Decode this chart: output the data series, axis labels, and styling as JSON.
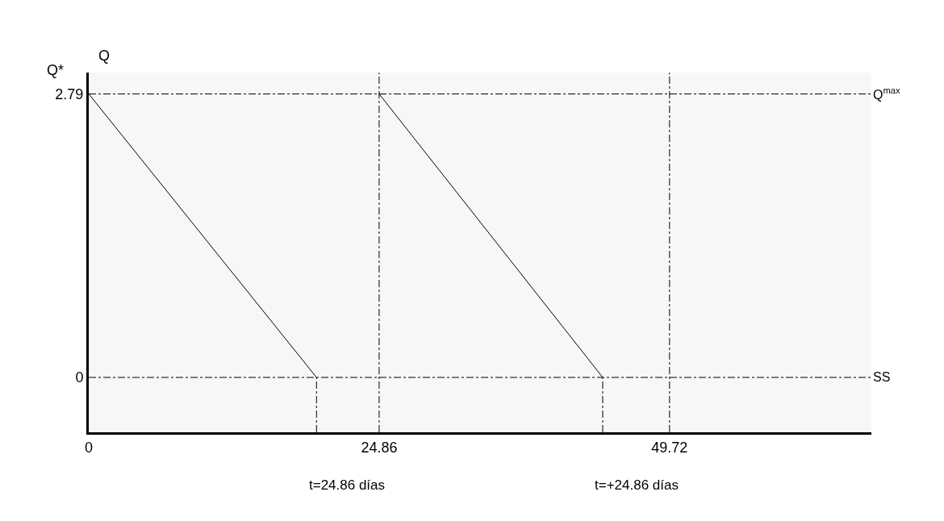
{
  "chart_data": {
    "type": "line",
    "ylabel": "Q",
    "series": [
      {
        "color": "#000000",
        "x": [
          0,
          19.5
        ],
        "values": [
          2.79,
          0
        ]
      },
      {
        "color": "#000000",
        "x": [
          24.86,
          44.0
        ],
        "values": [
          2.79,
          0
        ]
      },
      {
        "color": "#000000",
        "type": "line",
        "line_style": "dashed",
        "x": [
          19.5,
          19.5
        ],
        "values": [
          -0.54,
          0
        ]
      },
      {
        "color": "#000000",
        "type": "line",
        "line_style": "dashed",
        "x": [
          44.0,
          44.0
        ],
        "values": [
          -0.54,
          0
        ]
      }
    ],
    "xlim": [
      0,
      67
    ],
    "ylim": [
      -0.54,
      3.0
    ],
    "xticks": [
      0,
      24.86,
      49.72
    ],
    "yticks": [
      0,
      2.79
    ],
    "ref_lines": [
      {
        "axis": "y",
        "value": 2.79,
        "label": "Q$^{max}$",
        "line_style": "dashed",
        "color": "#000000"
      },
      {
        "axis": "y",
        "value": 0,
        "label": "SS",
        "line_style": "dashed",
        "color": "#000000"
      },
      {
        "axis": "x",
        "value": 24.86,
        "label": null,
        "line_style": "dashed",
        "color": "#000000"
      },
      {
        "axis": "x",
        "value": 49.72,
        "label": null,
        "line_style": "dashed",
        "color": "#000000"
      }
    ],
    "annotations": [
      "Q*",
      "t=24.86 días",
      "t=+24.86 días"
    ],
    "grid": false
  }
}
